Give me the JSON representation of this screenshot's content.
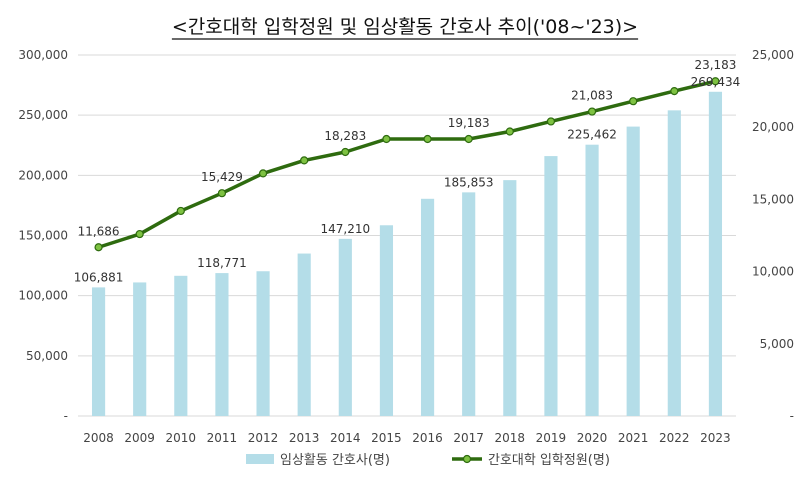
{
  "title": "<간호대학 입학정원 및 임상활동 간호사 추이('08~'23)>",
  "chart_data": {
    "type": "bar",
    "title": "<간호대학 입학정원 및 임상활동 간호사 추이('08~'23)>",
    "categories": [
      "2008",
      "2009",
      "2010",
      "2011",
      "2012",
      "2013",
      "2014",
      "2015",
      "2016",
      "2017",
      "2018",
      "2019",
      "2020",
      "2021",
      "2022",
      "2023"
    ],
    "series": [
      {
        "name": "임상활동 간호사(명)",
        "type": "bar",
        "axis": "left",
        "color": "#b4dde8",
        "values": [
          106881,
          111000,
          116500,
          118771,
          120300,
          135000,
          147210,
          158500,
          180500,
          185853,
          196000,
          216000,
          225462,
          240500,
          254000,
          269434
        ]
      },
      {
        "name": "간호대학 입학정원(명)",
        "type": "line",
        "axis": "right",
        "color": "#2e6b0f",
        "values": [
          11686,
          12600,
          14200,
          15429,
          16800,
          17700,
          18283,
          19183,
          19183,
          19183,
          19700,
          20400,
          21083,
          21800,
          22500,
          23183
        ]
      }
    ],
    "bar_labels": {
      "2008": "106,881",
      "2011": "118,771",
      "2014": "147,210",
      "2017": "185,853",
      "2020": "225,462",
      "2023": "269,434"
    },
    "line_labels": {
      "2008": "11,686",
      "2011": "15,429",
      "2014": "18,283",
      "2017": "19,183",
      "2020": "21,083",
      "2023": "23,183"
    },
    "y_left": {
      "min": 0,
      "max": 300000,
      "ticks": [
        0,
        50000,
        100000,
        150000,
        200000,
        250000,
        300000
      ],
      "tick_labels": [
        "-",
        "50,000",
        "100,000",
        "150,000",
        "200,000",
        "250,000",
        "300,000"
      ]
    },
    "y_right": {
      "min": 0,
      "max": 25000,
      "ticks": [
        0,
        5000,
        10000,
        15000,
        20000,
        25000
      ],
      "tick_labels": [
        "-",
        "5,000",
        "10,000",
        "15,000",
        "20,000",
        "25,000"
      ]
    },
    "grid": true,
    "legend_position": "bottom"
  }
}
